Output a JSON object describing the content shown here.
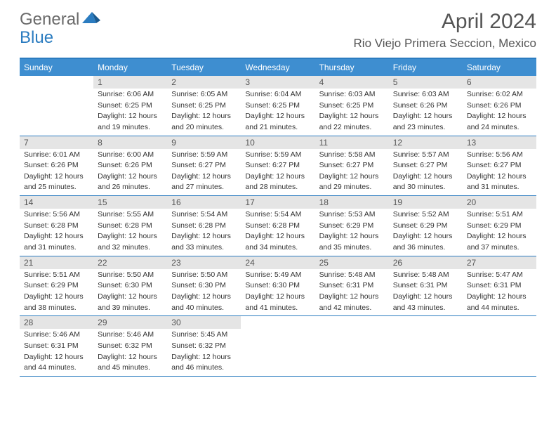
{
  "logo": {
    "part1": "General",
    "part2": "Blue"
  },
  "title": "April 2024",
  "location": "Rio Viejo Primera Seccion, Mexico",
  "colors": {
    "header_bar": "#3e8ed0",
    "border": "#2b7cc0",
    "day_num_bg": "#e5e5e5",
    "text": "#333333",
    "title_text": "#555555"
  },
  "weekdays": [
    "Sunday",
    "Monday",
    "Tuesday",
    "Wednesday",
    "Thursday",
    "Friday",
    "Saturday"
  ],
  "weeks": [
    [
      {
        "num": "",
        "lines": []
      },
      {
        "num": "1",
        "lines": [
          "Sunrise: 6:06 AM",
          "Sunset: 6:25 PM",
          "Daylight: 12 hours",
          "and 19 minutes."
        ]
      },
      {
        "num": "2",
        "lines": [
          "Sunrise: 6:05 AM",
          "Sunset: 6:25 PM",
          "Daylight: 12 hours",
          "and 20 minutes."
        ]
      },
      {
        "num": "3",
        "lines": [
          "Sunrise: 6:04 AM",
          "Sunset: 6:25 PM",
          "Daylight: 12 hours",
          "and 21 minutes."
        ]
      },
      {
        "num": "4",
        "lines": [
          "Sunrise: 6:03 AM",
          "Sunset: 6:25 PM",
          "Daylight: 12 hours",
          "and 22 minutes."
        ]
      },
      {
        "num": "5",
        "lines": [
          "Sunrise: 6:03 AM",
          "Sunset: 6:26 PM",
          "Daylight: 12 hours",
          "and 23 minutes."
        ]
      },
      {
        "num": "6",
        "lines": [
          "Sunrise: 6:02 AM",
          "Sunset: 6:26 PM",
          "Daylight: 12 hours",
          "and 24 minutes."
        ]
      }
    ],
    [
      {
        "num": "7",
        "lines": [
          "Sunrise: 6:01 AM",
          "Sunset: 6:26 PM",
          "Daylight: 12 hours",
          "and 25 minutes."
        ]
      },
      {
        "num": "8",
        "lines": [
          "Sunrise: 6:00 AM",
          "Sunset: 6:26 PM",
          "Daylight: 12 hours",
          "and 26 minutes."
        ]
      },
      {
        "num": "9",
        "lines": [
          "Sunrise: 5:59 AM",
          "Sunset: 6:27 PM",
          "Daylight: 12 hours",
          "and 27 minutes."
        ]
      },
      {
        "num": "10",
        "lines": [
          "Sunrise: 5:59 AM",
          "Sunset: 6:27 PM",
          "Daylight: 12 hours",
          "and 28 minutes."
        ]
      },
      {
        "num": "11",
        "lines": [
          "Sunrise: 5:58 AM",
          "Sunset: 6:27 PM",
          "Daylight: 12 hours",
          "and 29 minutes."
        ]
      },
      {
        "num": "12",
        "lines": [
          "Sunrise: 5:57 AM",
          "Sunset: 6:27 PM",
          "Daylight: 12 hours",
          "and 30 minutes."
        ]
      },
      {
        "num": "13",
        "lines": [
          "Sunrise: 5:56 AM",
          "Sunset: 6:27 PM",
          "Daylight: 12 hours",
          "and 31 minutes."
        ]
      }
    ],
    [
      {
        "num": "14",
        "lines": [
          "Sunrise: 5:56 AM",
          "Sunset: 6:28 PM",
          "Daylight: 12 hours",
          "and 31 minutes."
        ]
      },
      {
        "num": "15",
        "lines": [
          "Sunrise: 5:55 AM",
          "Sunset: 6:28 PM",
          "Daylight: 12 hours",
          "and 32 minutes."
        ]
      },
      {
        "num": "16",
        "lines": [
          "Sunrise: 5:54 AM",
          "Sunset: 6:28 PM",
          "Daylight: 12 hours",
          "and 33 minutes."
        ]
      },
      {
        "num": "17",
        "lines": [
          "Sunrise: 5:54 AM",
          "Sunset: 6:28 PM",
          "Daylight: 12 hours",
          "and 34 minutes."
        ]
      },
      {
        "num": "18",
        "lines": [
          "Sunrise: 5:53 AM",
          "Sunset: 6:29 PM",
          "Daylight: 12 hours",
          "and 35 minutes."
        ]
      },
      {
        "num": "19",
        "lines": [
          "Sunrise: 5:52 AM",
          "Sunset: 6:29 PM",
          "Daylight: 12 hours",
          "and 36 minutes."
        ]
      },
      {
        "num": "20",
        "lines": [
          "Sunrise: 5:51 AM",
          "Sunset: 6:29 PM",
          "Daylight: 12 hours",
          "and 37 minutes."
        ]
      }
    ],
    [
      {
        "num": "21",
        "lines": [
          "Sunrise: 5:51 AM",
          "Sunset: 6:29 PM",
          "Daylight: 12 hours",
          "and 38 minutes."
        ]
      },
      {
        "num": "22",
        "lines": [
          "Sunrise: 5:50 AM",
          "Sunset: 6:30 PM",
          "Daylight: 12 hours",
          "and 39 minutes."
        ]
      },
      {
        "num": "23",
        "lines": [
          "Sunrise: 5:50 AM",
          "Sunset: 6:30 PM",
          "Daylight: 12 hours",
          "and 40 minutes."
        ]
      },
      {
        "num": "24",
        "lines": [
          "Sunrise: 5:49 AM",
          "Sunset: 6:30 PM",
          "Daylight: 12 hours",
          "and 41 minutes."
        ]
      },
      {
        "num": "25",
        "lines": [
          "Sunrise: 5:48 AM",
          "Sunset: 6:31 PM",
          "Daylight: 12 hours",
          "and 42 minutes."
        ]
      },
      {
        "num": "26",
        "lines": [
          "Sunrise: 5:48 AM",
          "Sunset: 6:31 PM",
          "Daylight: 12 hours",
          "and 43 minutes."
        ]
      },
      {
        "num": "27",
        "lines": [
          "Sunrise: 5:47 AM",
          "Sunset: 6:31 PM",
          "Daylight: 12 hours",
          "and 44 minutes."
        ]
      }
    ],
    [
      {
        "num": "28",
        "lines": [
          "Sunrise: 5:46 AM",
          "Sunset: 6:31 PM",
          "Daylight: 12 hours",
          "and 44 minutes."
        ]
      },
      {
        "num": "29",
        "lines": [
          "Sunrise: 5:46 AM",
          "Sunset: 6:32 PM",
          "Daylight: 12 hours",
          "and 45 minutes."
        ]
      },
      {
        "num": "30",
        "lines": [
          "Sunrise: 5:45 AM",
          "Sunset: 6:32 PM",
          "Daylight: 12 hours",
          "and 46 minutes."
        ]
      },
      {
        "num": "",
        "lines": []
      },
      {
        "num": "",
        "lines": []
      },
      {
        "num": "",
        "lines": []
      },
      {
        "num": "",
        "lines": []
      }
    ]
  ]
}
